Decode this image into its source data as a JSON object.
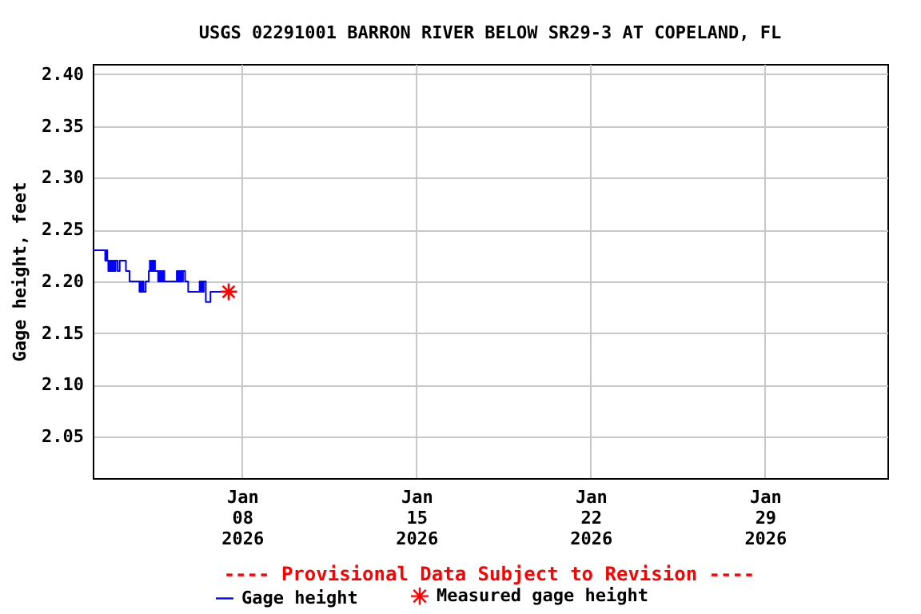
{
  "chart_data": {
    "type": "step",
    "title": "USGS 02291001 BARRON RIVER BELOW SR29-3 AT COPELAND, FL",
    "ylabel": "Gage height, feet",
    "annotations": [
      "---- Provisional Data Subject to Revision ----"
    ],
    "xlim": [
      "2026-01-02T00:00",
      "2026-02-02T22:00"
    ],
    "xticks": [
      {
        "value": "2026-01-08",
        "label": "Jan\n08\n2026"
      },
      {
        "value": "2026-01-15",
        "label": "Jan\n15\n2026"
      },
      {
        "value": "2026-01-22",
        "label": "Jan\n22\n2026"
      },
      {
        "value": "2026-01-29",
        "label": "Jan\n29\n2026"
      }
    ],
    "ylim": [
      2.01,
      2.41
    ],
    "yticks": [
      {
        "value": 2.05,
        "label": "2.05"
      },
      {
        "value": 2.1,
        "label": "2.10"
      },
      {
        "value": 2.15,
        "label": "2.15"
      },
      {
        "value": 2.2,
        "label": "2.20"
      },
      {
        "value": 2.25,
        "label": "2.25"
      },
      {
        "value": 2.3,
        "label": "2.30"
      },
      {
        "value": 2.35,
        "label": "2.35"
      },
      {
        "value": 2.4,
        "label": "2.40"
      }
    ],
    "grid": true,
    "legend": "bottom",
    "series": [
      {
        "name": "Gage height",
        "type": "step",
        "color": "#0000ff",
        "line_style": "solid",
        "marker": "none",
        "x": [
          "2026-01-02T00:00",
          "2026-01-02T12:00",
          "2026-01-02T13:00",
          "2026-01-02T14:00",
          "2026-01-02T15:00",
          "2026-01-02T16:00",
          "2026-01-02T17:00",
          "2026-01-02T18:00",
          "2026-01-02T19:00",
          "2026-01-02T20:00",
          "2026-01-02T21:00",
          "2026-01-02T22:00",
          "2026-01-03T00:00",
          "2026-01-03T02:00",
          "2026-01-03T04:00",
          "2026-01-03T08:00",
          "2026-01-03T11:30",
          "2026-01-03T21:00",
          "2026-01-03T22:00",
          "2026-01-03T23:00",
          "2026-01-04T00:00",
          "2026-01-04T01:00",
          "2026-01-04T03:00",
          "2026-01-04T06:00",
          "2026-01-04T07:00",
          "2026-01-04T08:00",
          "2026-01-04T09:00",
          "2026-01-04T10:00",
          "2026-01-04T11:00",
          "2026-01-04T12:00",
          "2026-01-04T14:00",
          "2026-01-04T15:00",
          "2026-01-04T16:00",
          "2026-01-04T17:00",
          "2026-01-04T18:00",
          "2026-01-04T19:00",
          "2026-01-04T20:00",
          "2026-01-04T21:00",
          "2026-01-05T00:00",
          "2026-01-05T09:00",
          "2026-01-05T10:00",
          "2026-01-05T11:00",
          "2026-01-05T12:00",
          "2026-01-05T13:00",
          "2026-01-05T14:00",
          "2026-01-05T15:00",
          "2026-01-05T17:00",
          "2026-01-05T20:00",
          "2026-01-06T07:00",
          "2026-01-06T08:00",
          "2026-01-06T09:00",
          "2026-01-06T10:00",
          "2026-01-06T11:00",
          "2026-01-06T13:00",
          "2026-01-06T17:30",
          "2026-01-07T05:00"
        ],
        "values": [
          2.23,
          2.22,
          2.23,
          2.22,
          2.21,
          2.22,
          2.21,
          2.22,
          2.21,
          2.22,
          2.21,
          2.22,
          2.21,
          2.22,
          2.22,
          2.21,
          2.2,
          2.19,
          2.2,
          2.19,
          2.2,
          2.19,
          2.2,
          2.21,
          2.22,
          2.21,
          2.22,
          2.21,
          2.22,
          2.21,
          2.21,
          2.2,
          2.21,
          2.2,
          2.21,
          2.2,
          2.21,
          2.2,
          2.2,
          2.21,
          2.2,
          2.21,
          2.2,
          2.21,
          2.2,
          2.21,
          2.2,
          2.19,
          2.2,
          2.19,
          2.2,
          2.19,
          2.2,
          2.18,
          2.19,
          2.19
        ]
      },
      {
        "name": "Measured gage height",
        "type": "scatter",
        "color": "#ff0000",
        "marker": "cross",
        "x": [
          "2026-01-07T11:00"
        ],
        "values": [
          2.19
        ]
      }
    ]
  }
}
